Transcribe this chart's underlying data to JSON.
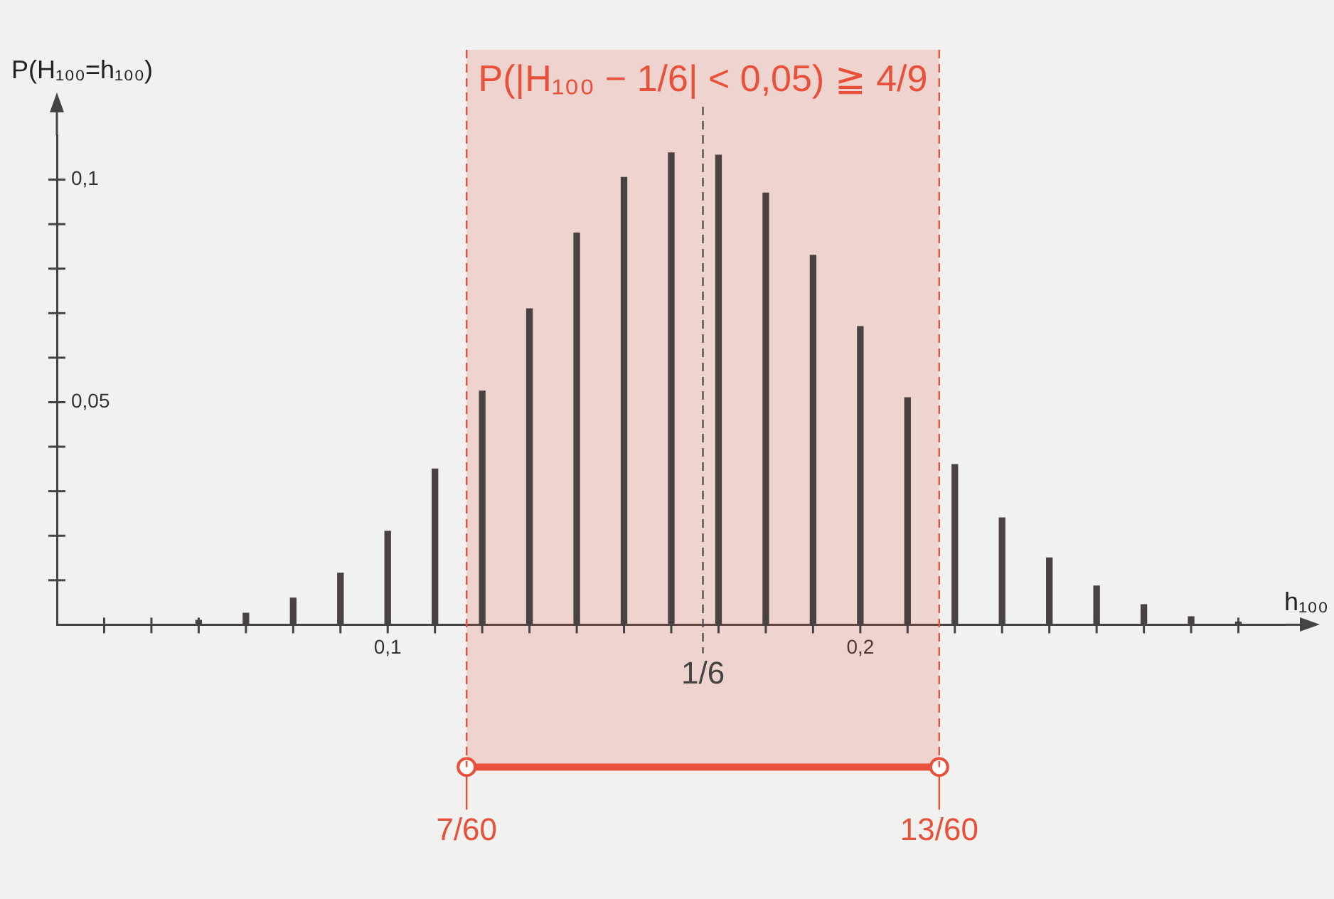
{
  "chart_data": {
    "type": "bar",
    "xlabel": "h₁₀₀",
    "ylabel": "P(H₁₀₀=h₁₀₀)",
    "x": [
      0.06,
      0.07,
      0.08,
      0.09,
      0.1,
      0.11,
      0.12,
      0.13,
      0.14,
      0.15,
      0.16,
      0.17,
      0.18,
      0.19,
      0.2,
      0.21,
      0.22,
      0.23,
      0.24,
      0.25,
      0.26,
      0.27,
      0.28
    ],
    "values": [
      0.001,
      0.0026,
      0.006,
      0.0116,
      0.021,
      0.035,
      0.0525,
      0.071,
      0.088,
      0.1005,
      0.106,
      0.1055,
      0.097,
      0.083,
      0.067,
      0.051,
      0.036,
      0.024,
      0.015,
      0.0087,
      0.0045,
      0.0018,
      0.0006
    ],
    "color": "#4a4242",
    "xlim": [
      0.03,
      0.29
    ],
    "xticks": [
      {
        "value": 0.04,
        "label": null
      },
      {
        "value": 0.05,
        "label": null
      },
      {
        "value": 0.06,
        "label": null
      },
      {
        "value": 0.07,
        "label": null
      },
      {
        "value": 0.08,
        "label": null
      },
      {
        "value": 0.09,
        "label": null
      },
      {
        "value": 0.1,
        "label": "0,1"
      },
      {
        "value": 0.11,
        "label": null
      },
      {
        "value": 0.12,
        "label": null
      },
      {
        "value": 0.13,
        "label": null
      },
      {
        "value": 0.14,
        "label": null
      },
      {
        "value": 0.15,
        "label": null
      },
      {
        "value": 0.16,
        "label": null
      },
      {
        "value": 0.17,
        "label": null
      },
      {
        "value": 0.18,
        "label": null
      },
      {
        "value": 0.19,
        "label": null
      },
      {
        "value": 0.2,
        "label": "0,2"
      },
      {
        "value": 0.21,
        "label": null
      },
      {
        "value": 0.22,
        "label": null
      },
      {
        "value": 0.23,
        "label": null
      },
      {
        "value": 0.24,
        "label": null
      },
      {
        "value": 0.25,
        "label": null
      },
      {
        "value": 0.26,
        "label": null
      },
      {
        "value": 0.27,
        "label": null
      },
      {
        "value": 0.28,
        "label": null
      }
    ],
    "ylim": [
      0,
      0.11
    ],
    "yticks": [
      {
        "value": 0.01,
        "label": null
      },
      {
        "value": 0.02,
        "label": null
      },
      {
        "value": 0.03,
        "label": null
      },
      {
        "value": 0.04,
        "label": null
      },
      {
        "value": 0.05,
        "label": "0,05"
      },
      {
        "value": 0.06,
        "label": null
      },
      {
        "value": 0.07,
        "label": null
      },
      {
        "value": 0.08,
        "label": null
      },
      {
        "value": 0.09,
        "label": null
      },
      {
        "value": 0.1,
        "label": "0,1"
      }
    ],
    "grid": false,
    "legend": false,
    "ref_lines": [
      {
        "axis": "x",
        "value": 0.1667,
        "label": null,
        "color": "#555555",
        "line_style": "dashed"
      },
      {
        "axis": "x",
        "value": 0.1167,
        "label": null,
        "color": "#e8503a",
        "line_style": "dashed"
      },
      {
        "axis": "x",
        "value": 0.2167,
        "label": null,
        "color": "#e8503a",
        "line_style": "dashed"
      }
    ],
    "annotations": [
      {
        "text": "1/6",
        "x": 0.1667,
        "y": 0
      },
      "7/60",
      "13/60"
    ],
    "bands": [
      {
        "axis": "x",
        "from": 0.1167,
        "to": 0.2167,
        "label": "P(|H₁₀₀ − 1/6| < 0,05) ≧ 4/9",
        "color": "#e8503a"
      }
    ]
  }
}
